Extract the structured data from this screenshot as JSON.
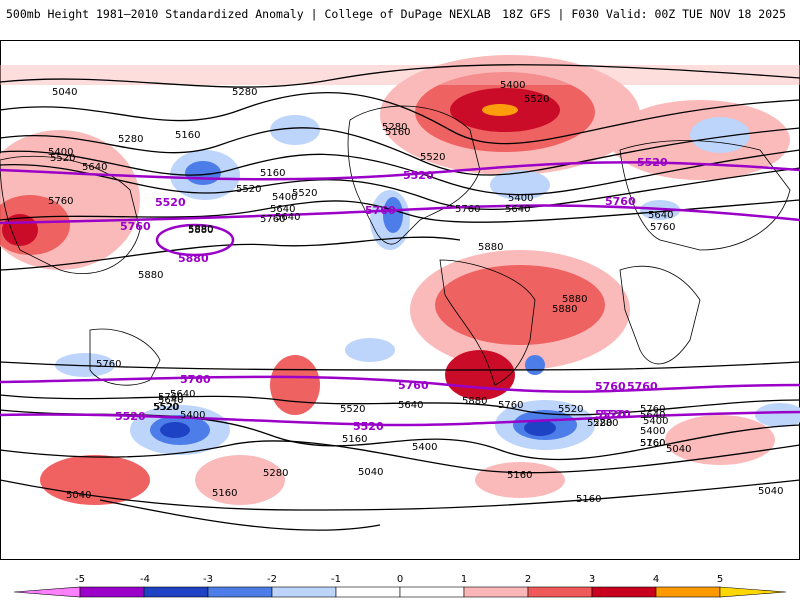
{
  "header": {
    "title": "500mb Height 1981–2010 Standardized Anomaly | College of DuPage NEXLAB",
    "run_info": "18Z GFS | F030 Valid: 00Z TUE NOV 18 2025"
  },
  "colors": {
    "ocean": "#ffffff",
    "contour_black": "#000000",
    "contour_purple": "#9b00c8",
    "coastline": "#000000"
  },
  "map": {
    "black_contour_labels": [
      "5040",
      "5280",
      "5160",
      "5280",
      "5400",
      "5520",
      "5640",
      "5760",
      "5880",
      "5160",
      "5400",
      "5520",
      "5640",
      "5760",
      "5880",
      "5880",
      "5760",
      "5640",
      "5520",
      "5400",
      "5280",
      "5160",
      "5040",
      "5520",
      "5400",
      "5640",
      "5760",
      "5880",
      "5760",
      "5640",
      "5520",
      "5400",
      "5280",
      "5160",
      "5040",
      "5160",
      "5280",
      "5400",
      "5520",
      "5640",
      "5760",
      "5160",
      "5040",
      "5160",
      "5040",
      "5160",
      "5280",
      "5400",
      "5520",
      "5640",
      "5760",
      "5880",
      "5880",
      "5880",
      "5760",
      "5640",
      "5520",
      "5400",
      "5520",
      "5640",
      "5760"
    ],
    "purple_contour_labels": [
      "5520",
      "5760",
      "5880",
      "5520",
      "5760",
      "5520",
      "5760",
      "5520",
      "5760",
      "5760",
      "5760",
      "5760",
      "5520",
      "5520",
      "5520"
    ]
  },
  "colorbar": {
    "ticks": [
      "-5",
      "-4",
      "-3",
      "-2",
      "-1",
      "0",
      "1",
      "2",
      "3",
      "4",
      "5"
    ],
    "colors": [
      "#ff80ff",
      "#9b00c8",
      "#1d43c4",
      "#4d7de8",
      "#bdd4fb",
      "#ffffff",
      "#ffffff",
      "#fbb7b7",
      "#ef5a5a",
      "#c8001e",
      "#ff9900"
    ]
  }
}
